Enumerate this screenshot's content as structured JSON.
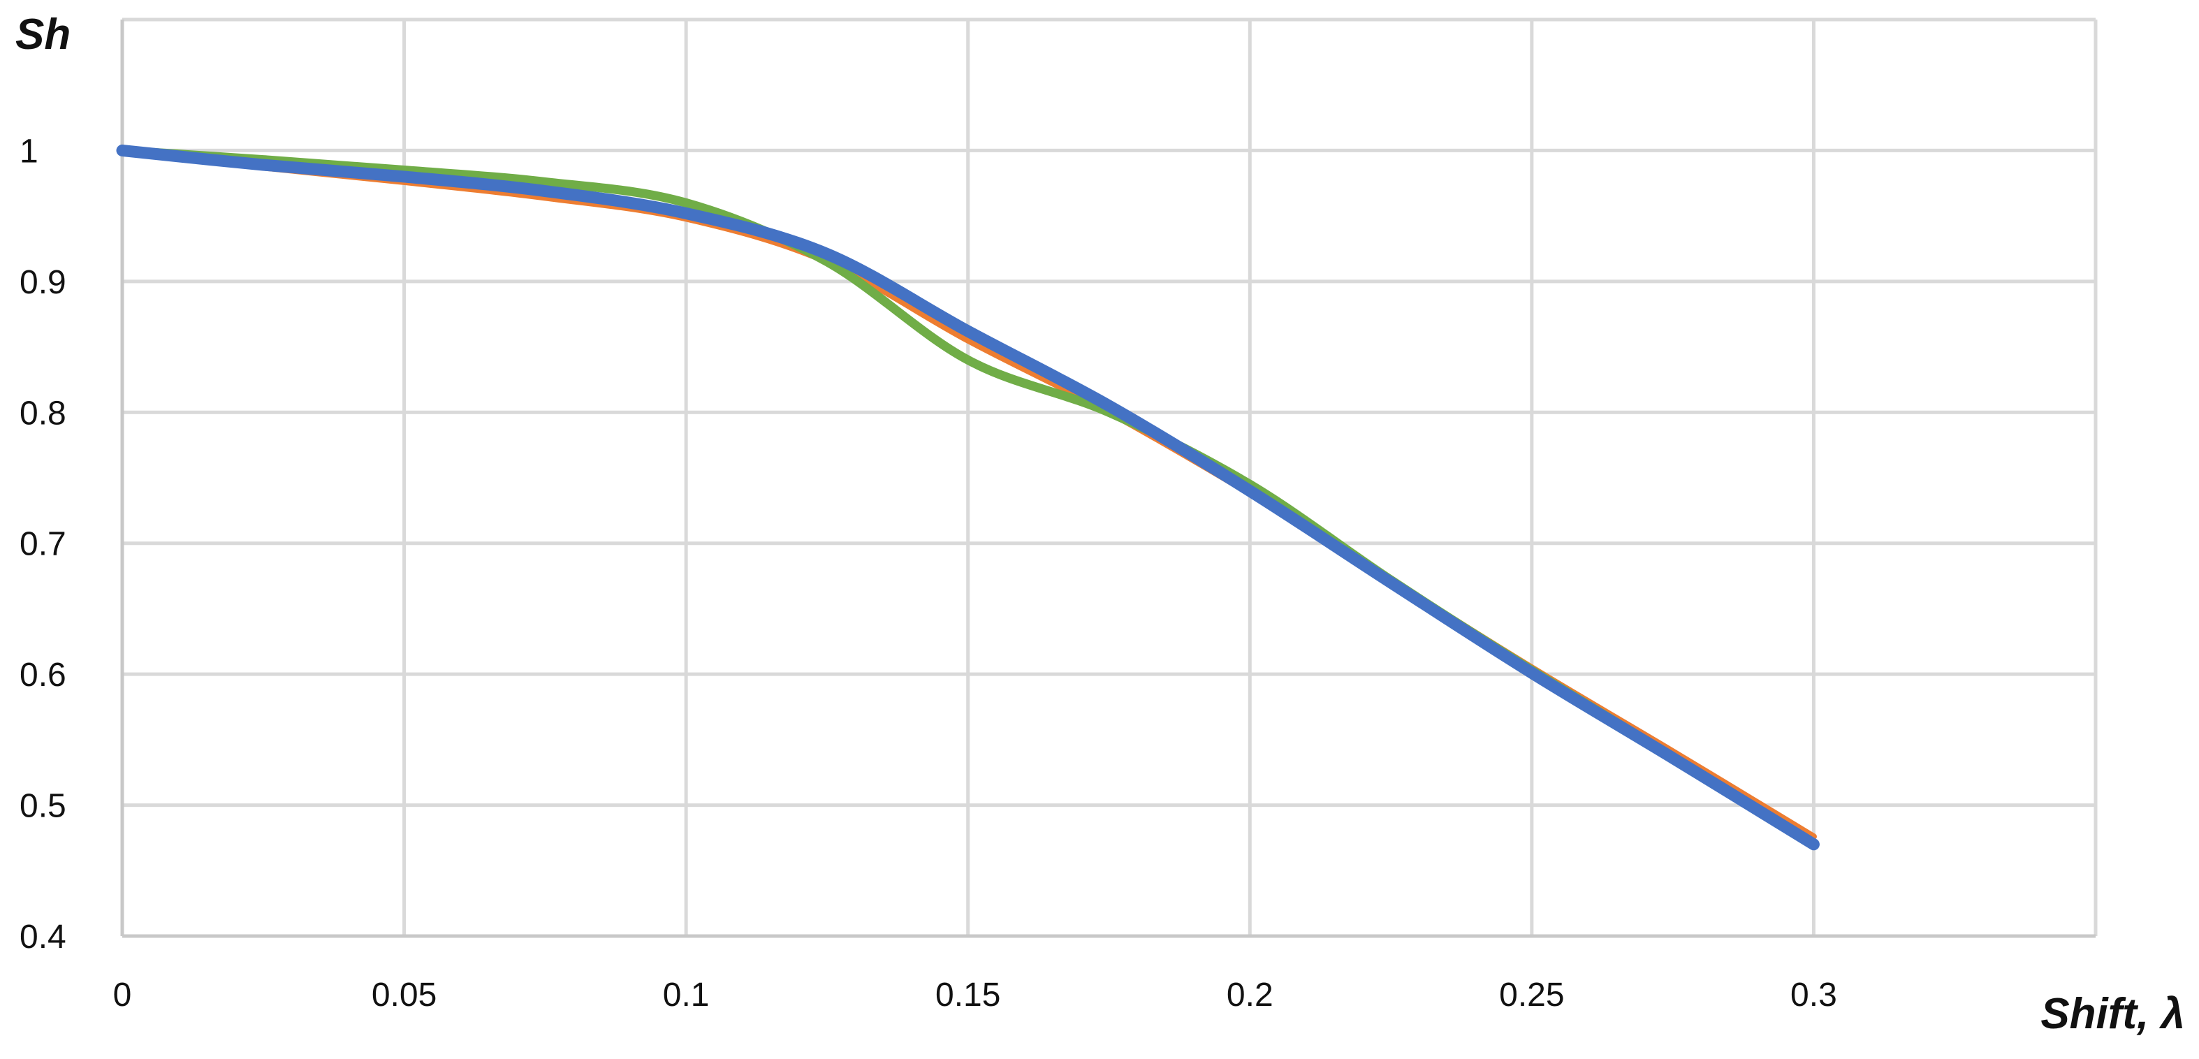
{
  "chart_data": {
    "type": "line",
    "title": "",
    "xlabel": "Shift, λ",
    "ylabel": "Sh",
    "xlim": [
      0,
      0.35
    ],
    "ylim": [
      0.4,
      1.1
    ],
    "x_ticks": [
      0,
      0.05,
      0.1,
      0.15,
      0.2,
      0.25,
      0.3
    ],
    "x_tick_labels": [
      "0",
      "0.05",
      "0.1",
      "0.15",
      "0.2",
      "0.25",
      "0.3"
    ],
    "y_ticks": [
      0.4,
      0.5,
      0.6,
      0.7,
      0.8,
      0.9,
      1.0
    ],
    "y_tick_labels": [
      "0.4",
      "0.5",
      "0.6",
      "0.7",
      "0.8",
      "0.9",
      "1"
    ],
    "grid": true,
    "legend": "none",
    "series": [
      {
        "color": "#ED7D31",
        "x": [
          0,
          0.025,
          0.05,
          0.075,
          0.1,
          0.125,
          0.15,
          0.175,
          0.2,
          0.225,
          0.25,
          0.275,
          0.3
        ],
        "y": [
          1.0,
          0.987,
          0.976,
          0.964,
          0.948,
          0.915,
          0.855,
          0.8,
          0.738,
          0.672,
          0.605,
          0.541,
          0.476
        ]
      },
      {
        "color": "#70AD47",
        "x": [
          0,
          0.025,
          0.05,
          0.075,
          0.1,
          0.125,
          0.15,
          0.175,
          0.2,
          0.225,
          0.25,
          0.275,
          0.3
        ],
        "y": [
          1.0,
          0.993,
          0.985,
          0.976,
          0.96,
          0.915,
          0.84,
          0.8,
          0.745,
          0.672,
          0.603,
          0.537,
          0.471
        ]
      },
      {
        "color": "#4472C4",
        "x": [
          0,
          0.025,
          0.05,
          0.075,
          0.1,
          0.125,
          0.15,
          0.175,
          0.2,
          0.225,
          0.25,
          0.275,
          0.3
        ],
        "y": [
          1.0,
          0.989,
          0.98,
          0.969,
          0.952,
          0.921,
          0.862,
          0.805,
          0.74,
          0.67,
          0.601,
          0.536,
          0.47
        ]
      }
    ]
  }
}
